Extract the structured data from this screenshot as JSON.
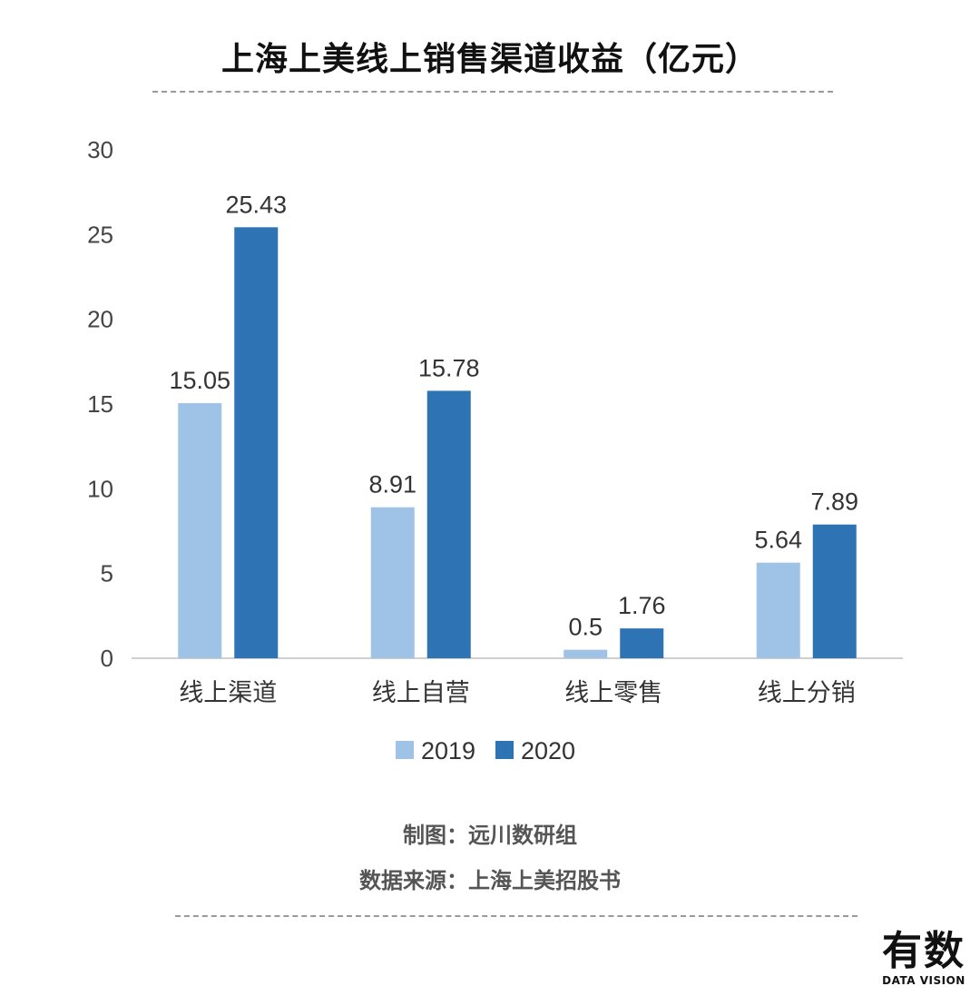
{
  "chart_data": {
    "type": "bar",
    "title": "上海上美线上销售渠道收益（亿元）",
    "categories": [
      "线上渠道",
      "线上自营",
      "线上零售",
      "线上分销"
    ],
    "series": [
      {
        "name": "2019",
        "values": [
          15.05,
          8.91,
          0.5,
          5.64
        ],
        "labels": [
          "15.05",
          "8.91",
          "0.5",
          "5.64"
        ]
      },
      {
        "name": "2020",
        "values": [
          25.43,
          15.78,
          1.76,
          7.89
        ],
        "labels": [
          "25.43",
          "15.78",
          "1.76",
          "7.89"
        ]
      }
    ],
    "yticks": [
      0,
      5,
      10,
      15,
      20,
      25,
      30
    ],
    "ylim": [
      0,
      30
    ],
    "xlabel": "",
    "ylabel": "",
    "legend_position": "bottom-center",
    "grid": false
  },
  "colors": {
    "series_2019": "#9fc3e6",
    "series_2020": "#2e74b5",
    "axis": "#cfcfcf",
    "tick_text": "#444444",
    "label_text": "#333333"
  },
  "footer": {
    "maker": "制图：远川数研组",
    "source": "数据来源：上海上美招股书"
  },
  "logo": {
    "cn": "有数",
    "en": "DATA VISION"
  }
}
